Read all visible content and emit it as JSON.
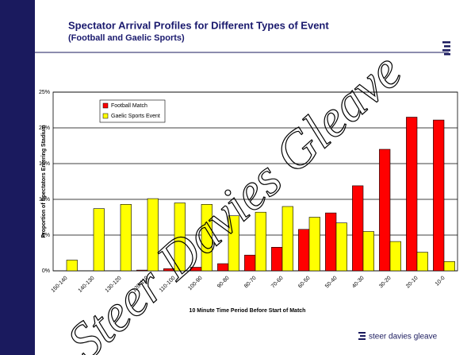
{
  "header": {
    "title": "Spectator Arrival Profiles for Different Types of Event",
    "subtitle": "(Football and Gaelic Sports)"
  },
  "footer": {
    "logo_text": "steer davies gleave"
  },
  "watermark": "Steer Davies Gleave",
  "chart_data": {
    "type": "bar",
    "x_label": "10 Minute Time Period Before Start of Match",
    "y_label": "Proportion of Spectators Entering Stadium",
    "categories": [
      "150-140",
      "140-130",
      "130-120",
      "120-110",
      "110-100",
      "100-90",
      "90-80",
      "80-70",
      "70-60",
      "60-50",
      "50-40",
      "40-30",
      "30-20",
      "20-10",
      "10-0"
    ],
    "series": [
      {
        "name": "Football Match",
        "color": "#ff0000",
        "values": [
          0,
          0,
          0,
          0.1,
          0.3,
          0.5,
          1,
          2.2,
          3.3,
          5.8,
          8.1,
          11.9,
          17,
          21.5,
          21.1
        ]
      },
      {
        "name": "Gaelic Sports Event",
        "color": "#ffff00",
        "values": [
          1.5,
          8.7,
          9.3,
          10.1,
          9.5,
          9.3,
          7.7,
          8.2,
          9,
          7.5,
          6.7,
          5.5,
          4.1,
          2.6,
          1.3
        ]
      }
    ],
    "ylim": [
      0,
      25
    ],
    "yticks": [
      {
        "value": 0,
        "label": "0%"
      },
      {
        "value": 5,
        "label": "5%"
      },
      {
        "value": 10,
        "label": "10%"
      },
      {
        "value": 15,
        "label": "15%"
      },
      {
        "value": 20,
        "label": "20%"
      },
      {
        "value": 25,
        "label": "25%"
      }
    ],
    "grid": true,
    "legend": "top-left"
  }
}
